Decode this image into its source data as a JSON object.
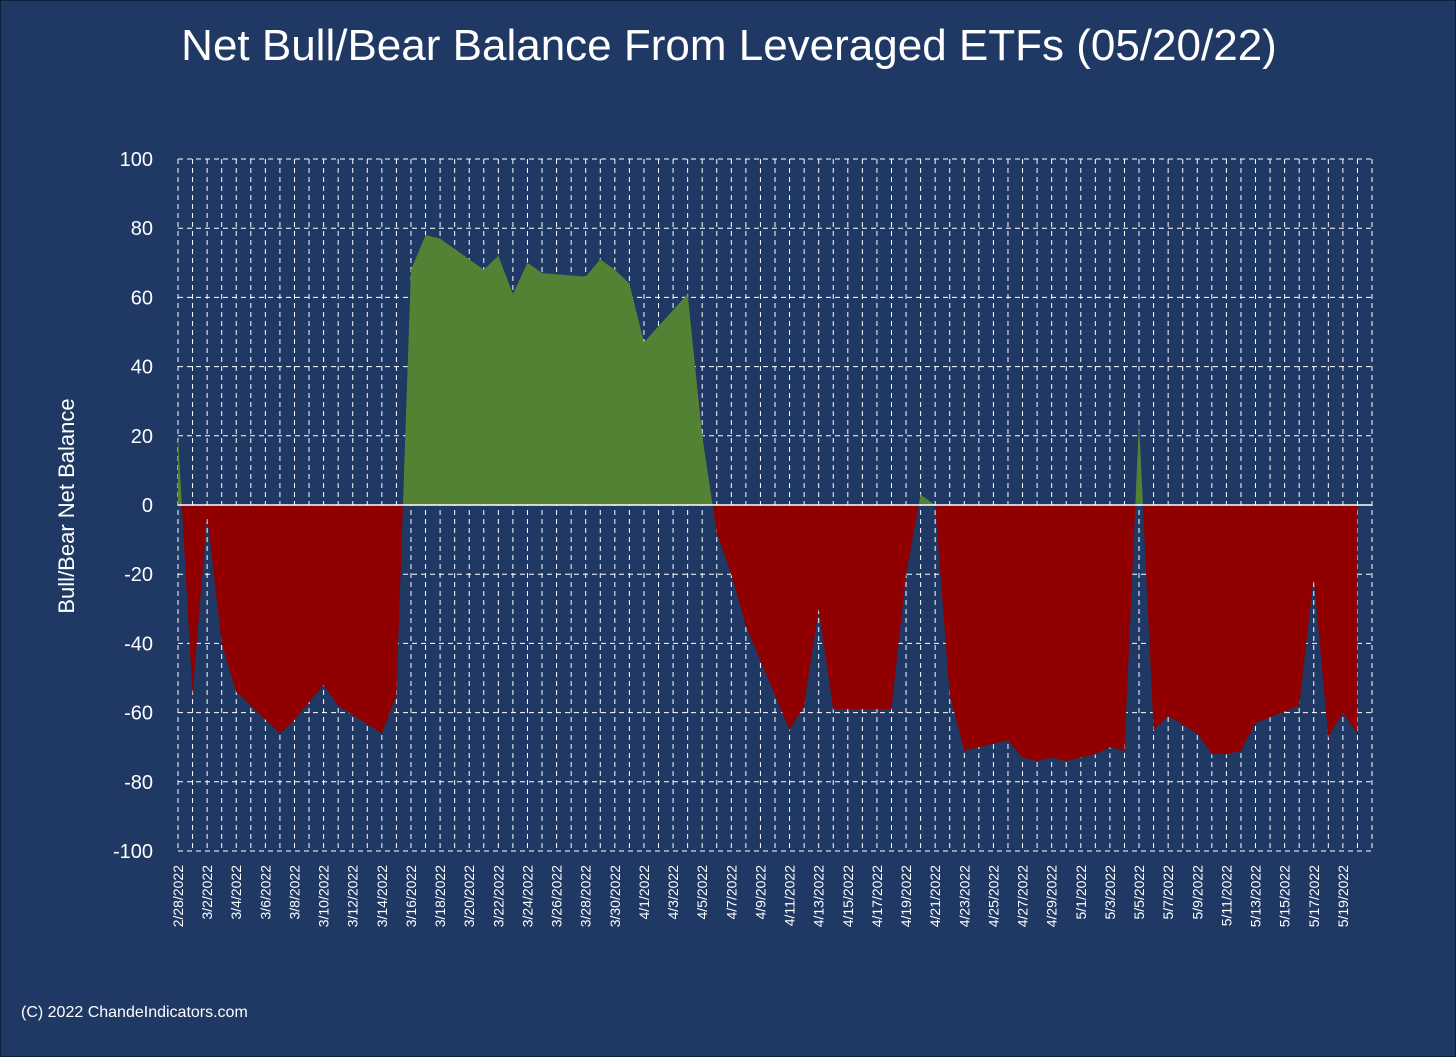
{
  "title": "Net Bull/Bear Balance From Leveraged ETFs (05/20/22)",
  "credit": "(C) 2022 ChandeIndicators.com",
  "colors": {
    "background": "#1f3864",
    "bull_fill": "#548235",
    "bear_fill": "#900000",
    "grid": "#ffffff",
    "zero_line": "#ffffff",
    "text": "#ffffff"
  },
  "chart_data": {
    "type": "area",
    "title": "Net Bull/Bear Balance From Leveraged ETFs (05/20/22)",
    "xlabel": "",
    "ylabel": "Bull/Bear Net Balance",
    "ylim": [
      -100,
      100
    ],
    "y_ticks": [
      100,
      80,
      60,
      40,
      20,
      0,
      -20,
      -40,
      -60,
      -80,
      -100
    ],
    "grid": true,
    "grid_style": "dashed",
    "legend": "none",
    "positive_color": "#548235",
    "negative_color": "#900000",
    "x_tick_labels": [
      "2/28/2022",
      "3/2/2022",
      "3/4/2022",
      "3/6/2022",
      "3/8/2022",
      "3/10/2022",
      "3/12/2022",
      "3/14/2022",
      "3/16/2022",
      "3/18/2022",
      "3/20/2022",
      "3/22/2022",
      "3/24/2022",
      "3/26/2022",
      "3/28/2022",
      "3/30/2022",
      "4/1/2022",
      "4/3/2022",
      "4/5/2022",
      "4/7/2022",
      "4/9/2022",
      "4/11/2022",
      "4/13/2022",
      "4/15/2022",
      "4/17/2022",
      "4/19/2022",
      "4/21/2022",
      "4/23/2022",
      "4/25/2022",
      "4/27/2022",
      "4/29/2022",
      "5/1/2022",
      "5/3/2022",
      "5/5/2022",
      "5/7/2022",
      "5/9/2022",
      "5/11/2022",
      "5/13/2022",
      "5/15/2022",
      "5/17/2022",
      "5/19/2022"
    ],
    "points": [
      {
        "x": "2/28/2022",
        "y": 20
      },
      {
        "x": "3/1/2022",
        "y": -55
      },
      {
        "x": "3/2/2022",
        "y": -3
      },
      {
        "x": "3/3/2022",
        "y": -40
      },
      {
        "x": "3/4/2022",
        "y": -54
      },
      {
        "x": "3/7/2022",
        "y": -66
      },
      {
        "x": "3/8/2022",
        "y": -62
      },
      {
        "x": "3/10/2022",
        "y": -52
      },
      {
        "x": "3/11/2022",
        "y": -58
      },
      {
        "x": "3/14/2022",
        "y": -66
      },
      {
        "x": "3/15/2022",
        "y": -55
      },
      {
        "x": "3/16/2022",
        "y": 68
      },
      {
        "x": "3/17/2022",
        "y": 78
      },
      {
        "x": "3/18/2022",
        "y": 77
      },
      {
        "x": "3/21/2022",
        "y": 68
      },
      {
        "x": "3/22/2022",
        "y": 72
      },
      {
        "x": "3/23/2022",
        "y": 61
      },
      {
        "x": "3/24/2022",
        "y": 70
      },
      {
        "x": "3/25/2022",
        "y": 67
      },
      {
        "x": "3/28/2022",
        "y": 66
      },
      {
        "x": "3/29/2022",
        "y": 71
      },
      {
        "x": "3/30/2022",
        "y": 68
      },
      {
        "x": "3/31/2022",
        "y": 64
      },
      {
        "x": "4/1/2022",
        "y": 47
      },
      {
        "x": "4/4/2022",
        "y": 61
      },
      {
        "x": "4/5/2022",
        "y": 20
      },
      {
        "x": "4/6/2022",
        "y": -8
      },
      {
        "x": "4/7/2022",
        "y": -20
      },
      {
        "x": "4/8/2022",
        "y": -35
      },
      {
        "x": "4/11/2022",
        "y": -65
      },
      {
        "x": "4/12/2022",
        "y": -58
      },
      {
        "x": "4/13/2022",
        "y": -30
      },
      {
        "x": "4/14/2022",
        "y": -59
      },
      {
        "x": "4/18/2022",
        "y": -59
      },
      {
        "x": "4/19/2022",
        "y": -20
      },
      {
        "x": "4/20/2022",
        "y": 3
      },
      {
        "x": "4/21/2022",
        "y": 0
      },
      {
        "x": "4/22/2022",
        "y": -55
      },
      {
        "x": "4/23/2022",
        "y": -71
      },
      {
        "x": "4/25/2022",
        "y": -69
      },
      {
        "x": "4/26/2022",
        "y": -68
      },
      {
        "x": "4/27/2022",
        "y": -73
      },
      {
        "x": "4/28/2022",
        "y": -74
      },
      {
        "x": "4/29/2022",
        "y": -73
      },
      {
        "x": "4/30/2022",
        "y": -74
      },
      {
        "x": "5/2/2022",
        "y": -72
      },
      {
        "x": "5/3/2022",
        "y": -70
      },
      {
        "x": "5/4/2022",
        "y": -71
      },
      {
        "x": "5/5/2022",
        "y": 24
      },
      {
        "x": "5/6/2022",
        "y": -65
      },
      {
        "x": "5/7/2022",
        "y": -61
      },
      {
        "x": "5/9/2022",
        "y": -66
      },
      {
        "x": "5/10/2022",
        "y": -72
      },
      {
        "x": "5/11/2022",
        "y": -72
      },
      {
        "x": "5/12/2022",
        "y": -71
      },
      {
        "x": "5/13/2022",
        "y": -63
      },
      {
        "x": "5/16/2022",
        "y": -58
      },
      {
        "x": "5/17/2022",
        "y": -21
      },
      {
        "x": "5/18/2022",
        "y": -67
      },
      {
        "x": "5/19/2022",
        "y": -60
      },
      {
        "x": "5/20/2022",
        "y": -66
      }
    ]
  }
}
